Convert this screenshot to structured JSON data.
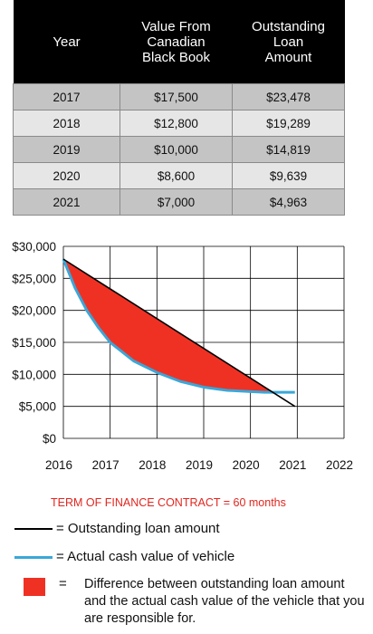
{
  "table": {
    "headers": [
      "Year",
      "Value From Canadian Black Book",
      "Outstanding Loan Amount"
    ],
    "header_lines": [
      [
        "Year"
      ],
      [
        "Value From",
        "Canadian",
        "Black Book"
      ],
      [
        "Outstanding",
        "Loan",
        "Amount"
      ]
    ],
    "rows": [
      {
        "year": "2017",
        "value": "$17,500",
        "loan": "$23,478"
      },
      {
        "year": "2018",
        "value": "$12,800",
        "loan": "$19,289"
      },
      {
        "year": "2019",
        "value": "$10,000",
        "loan": "$14,819"
      },
      {
        "year": "2020",
        "value": "$8,600",
        "loan": "$9,639"
      },
      {
        "year": "2021",
        "value": "$7,000",
        "loan": "$4,963"
      }
    ]
  },
  "chart_data": {
    "type": "line",
    "title": "",
    "xlabel": "",
    "ylabel": "",
    "x_ticks": [
      "2016",
      "2017",
      "2018",
      "2019",
      "2020",
      "2021",
      "2022"
    ],
    "y_ticks": [
      "$30,000",
      "$25,000",
      "$20,000",
      "$15,000",
      "$10,000",
      "$5,000",
      "$0"
    ],
    "xlim": [
      2016,
      2022
    ],
    "ylim": [
      0,
      30000
    ],
    "grid": true,
    "series": [
      {
        "name": "Outstanding loan amount",
        "color": "#000000",
        "x": [
          2016,
          2020.95
        ],
        "y": [
          28000,
          5000
        ]
      },
      {
        "name": "Actual cash value of vehicle",
        "color": "#3aa7d8",
        "x": [
          2016,
          2016.25,
          2016.5,
          2016.75,
          2017,
          2017.5,
          2018,
          2018.5,
          2019,
          2019.5,
          2020,
          2020.3,
          2020.6,
          2020.95
        ],
        "y": [
          28000,
          23500,
          20000,
          17300,
          15000,
          12100,
          10300,
          8900,
          8000,
          7500,
          7300,
          7200,
          7200,
          7200
        ]
      }
    ],
    "fill_between": {
      "color": "#ef3124",
      "between": [
        "Outstanding loan amount",
        "Actual cash value of vehicle"
      ]
    }
  },
  "legend": {
    "term": "TERM OF FINANCE CONTRACT = 60 months",
    "loan_label": "= Outstanding loan amount",
    "value_label": "= Actual cash value of vehicle",
    "diff_eq": "=",
    "diff_label": "Difference between outstanding loan amount and the actual cash value of the vehicle that you are responsible for."
  }
}
